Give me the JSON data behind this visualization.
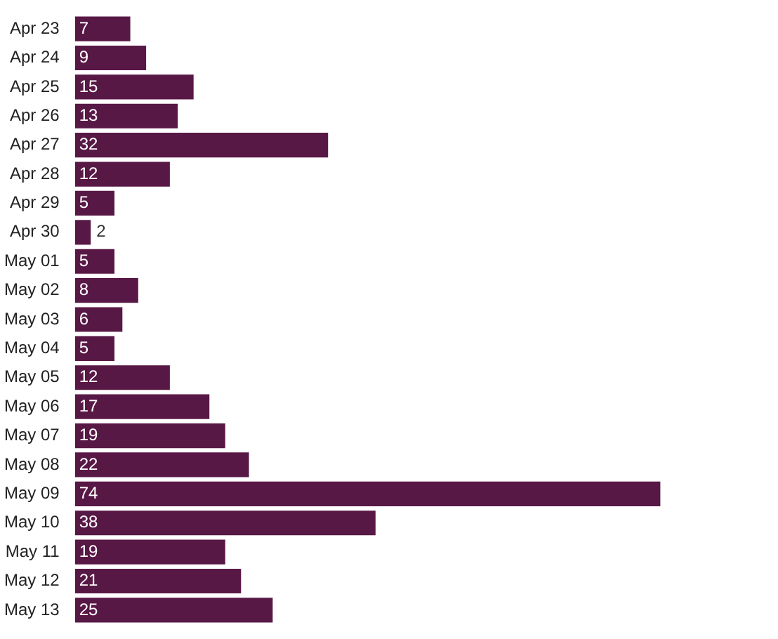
{
  "chart_data": {
    "type": "bar",
    "orientation": "horizontal",
    "categories": [
      "Apr 23",
      "Apr 24",
      "Apr 25",
      "Apr 26",
      "Apr 27",
      "Apr 28",
      "Apr 29",
      "Apr 30",
      "May 01",
      "May 02",
      "May 03",
      "May 04",
      "May 05",
      "May 06",
      "May 07",
      "May 08",
      "May 09",
      "May 10",
      "May 11",
      "May 12",
      "May 13"
    ],
    "values": [
      7,
      9,
      15,
      13,
      32,
      12,
      5,
      2,
      5,
      8,
      6,
      5,
      12,
      17,
      19,
      22,
      74,
      38,
      19,
      21,
      25
    ],
    "color": "#581845",
    "data_labels": true,
    "grid": false,
    "legend": false
  }
}
